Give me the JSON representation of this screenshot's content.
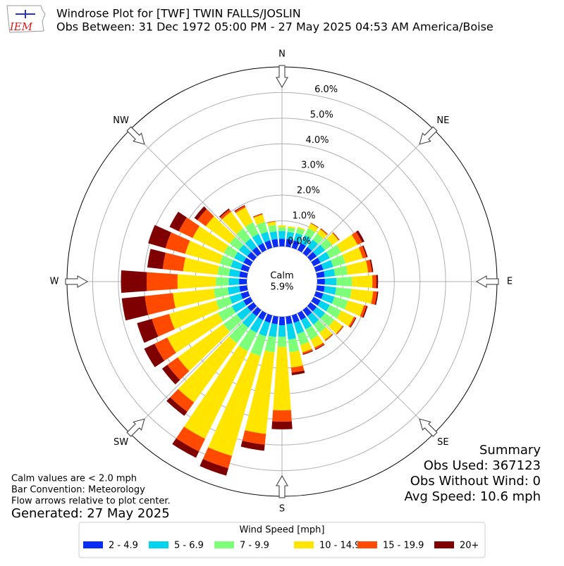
{
  "chart_data": {
    "type": "windrose",
    "title": "Windrose Plot for [TWF] TWIN FALLS/JOSLIN",
    "subtitle": "Obs Between: 31 Dec 1972 05:00 PM - 27 May 2025 04:53 AM America/Boise",
    "logo_text": "IEM",
    "compass_labels": [
      "N",
      "NE",
      "E",
      "SE",
      "S",
      "SW",
      "W",
      "NW"
    ],
    "ylim": [
      0,
      7
    ],
    "yticks": [
      {
        "value": 0,
        "label": "0.0%"
      },
      {
        "value": 1,
        "label": "1.0%"
      },
      {
        "value": 2,
        "label": "2.0%"
      },
      {
        "value": 3,
        "label": "3.0%"
      },
      {
        "value": 4,
        "label": "4.0%"
      },
      {
        "value": 5,
        "label": "5.0%"
      },
      {
        "value": 6,
        "label": "6.0%"
      }
    ],
    "calm_label": "Calm",
    "calm_value": 5.9,
    "calm_value_label": "5.9%",
    "legend_title": "Wind Speed [mph]",
    "series": [
      {
        "name": "2 - 4.9",
        "color": "#0a2cf5",
        "values": [
          0.3,
          0.3,
          0.3,
          0.3,
          0.3,
          0.3,
          0.3,
          0.3,
          0.3,
          0.3,
          0.3,
          0.3,
          0.3,
          0.3,
          0.3,
          0.3,
          0.3,
          0.3,
          0.33,
          0.3,
          0.3,
          0.3,
          0.3,
          0.3,
          0.3,
          0.3,
          0.3,
          0.3,
          0.3,
          0.3,
          0.3,
          0.3,
          0.3,
          0.3,
          0.3,
          0.3
        ]
      },
      {
        "name": "5 - 6.9",
        "color": "#00d4ee",
        "values": [
          0.3,
          0.28,
          0.3,
          0.35,
          0.35,
          0.4,
          0.4,
          0.4,
          0.4,
          0.45,
          0.45,
          0.45,
          0.4,
          0.4,
          0.4,
          0.4,
          0.45,
          0.6,
          0.45,
          0.5,
          0.55,
          0.55,
          0.55,
          0.5,
          0.5,
          0.45,
          0.45,
          0.4,
          0.4,
          0.4,
          0.4,
          0.4,
          0.4,
          0.4,
          0.35,
          0.3
        ]
      },
      {
        "name": "7 - 9.9",
        "color": "#7dff7a",
        "values": [
          0.15,
          0.17,
          0.2,
          0.3,
          0.3,
          0.35,
          0.5,
          0.5,
          0.5,
          0.6,
          0.6,
          0.55,
          0.5,
          0.45,
          0.4,
          0.45,
          0.45,
          0.5,
          0.4,
          0.6,
          0.8,
          0.8,
          0.75,
          0.65,
          0.6,
          0.55,
          0.55,
          0.5,
          0.45,
          0.45,
          0.45,
          0.45,
          0.5,
          0.5,
          0.4,
          0.25
        ]
      },
      {
        "name": "10 - 14.9",
        "color": "#ffe500",
        "values": [
          0.07,
          0.05,
          0.05,
          0.2,
          0.2,
          0.3,
          0.7,
          0.7,
          0.8,
          0.8,
          0.85,
          0.65,
          0.55,
          0.4,
          0.35,
          0.35,
          0.3,
          0.6,
          2.47,
          3.2,
          4.05,
          3.8,
          2.85,
          2.2,
          2.2,
          1.9,
          1.6,
          1.5,
          1.35,
          1.4,
          1.35,
          1.15,
          0.8,
          0.65,
          0.3,
          0.13
        ]
      },
      {
        "name": "15 - 19.9",
        "color": "#ff4a00",
        "values": [
          0,
          0,
          0,
          0.02,
          0.04,
          0.04,
          0.2,
          0.15,
          0.15,
          0.15,
          0.15,
          0.1,
          0.07,
          0.04,
          0.04,
          0.07,
          0.07,
          0.2,
          0.44,
          0.42,
          0.5,
          0.55,
          0.45,
          0.5,
          0.55,
          0.7,
          1.1,
          1.2,
          0.8,
          0.8,
          0.6,
          0.4,
          0.1,
          0.07,
          0.04,
          0.02
        ]
      },
      {
        "name": "20+",
        "color": "#7f0000",
        "values": [
          0,
          0,
          0,
          0.01,
          0.01,
          0.01,
          0.1,
          0.05,
          0.05,
          0.07,
          0.05,
          0.05,
          0.03,
          0.01,
          0.01,
          0.03,
          0.03,
          0.1,
          0.3,
          0.24,
          0.3,
          0.27,
          0.2,
          0.25,
          0.45,
          0.6,
          0.9,
          1.0,
          0.6,
          0.7,
          0.4,
          0.15,
          0.05,
          0.03,
          0.01,
          0
        ]
      }
    ],
    "summary": [
      "Summary",
      "Obs Used: 367123",
      "Obs Without Wind: 0",
      "Avg Speed: 10.6 mph"
    ],
    "notes": [
      "Calm values are < 2.0 mph",
      "Bar Convention: Meteorology",
      "Flow arrows relative to plot center."
    ],
    "generated": "Generated: 27 May 2025"
  }
}
